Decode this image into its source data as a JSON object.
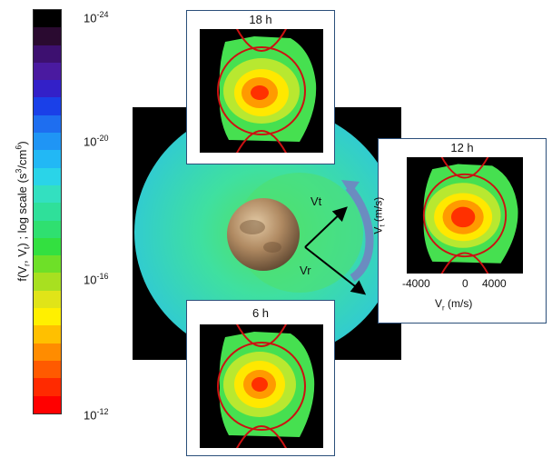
{
  "colorbar": {
    "label_main": "f(V",
    "label_sub1": "r",
    "label_mid": ", V",
    "label_sub2": "t",
    "label_tail": ") ; log scale (s",
    "label_sup": "3",
    "label_mid2": "/cm",
    "label_sup2": "6",
    "label_end": ")",
    "ticks": [
      {
        "base": "10",
        "exp": "-24"
      },
      {
        "base": "10",
        "exp": "-20"
      },
      {
        "base": "10",
        "exp": "-16"
      },
      {
        "base": "10",
        "exp": "-12"
      }
    ],
    "colors": [
      "#000000",
      "#2a0a30",
      "#3d1070",
      "#4a1aa0",
      "#3320c8",
      "#1a40e8",
      "#1e6ef0",
      "#1f95f5",
      "#22b8f5",
      "#2ad4e8",
      "#33e0c0",
      "#2fe09a",
      "#2fe070",
      "#33e040",
      "#6ee028",
      "#a8e020",
      "#e0e418",
      "#fff000",
      "#ffc000",
      "#ff8c00",
      "#ff5a00",
      "#ff2a00",
      "#ff0000"
    ]
  },
  "center_labels": {
    "vt": "Vt",
    "vr": "Vr"
  },
  "panels": {
    "top": {
      "title": "18 h"
    },
    "right": {
      "title": "12 h",
      "ylabel_main": "V",
      "ylabel_sub": "t",
      "ylabel_unit": " (m/s)",
      "xlabel_main": "V",
      "xlabel_sub": "r",
      "xlabel_unit": " (m/s)",
      "xticks": [
        "-4000",
        "0",
        "4000"
      ]
    },
    "bottom": {
      "title": "6 h"
    }
  },
  "colors": {
    "panel_border": "#2b4f7a",
    "orbit_curve": "#cc1111",
    "arrow": "#6b8cc0"
  }
}
